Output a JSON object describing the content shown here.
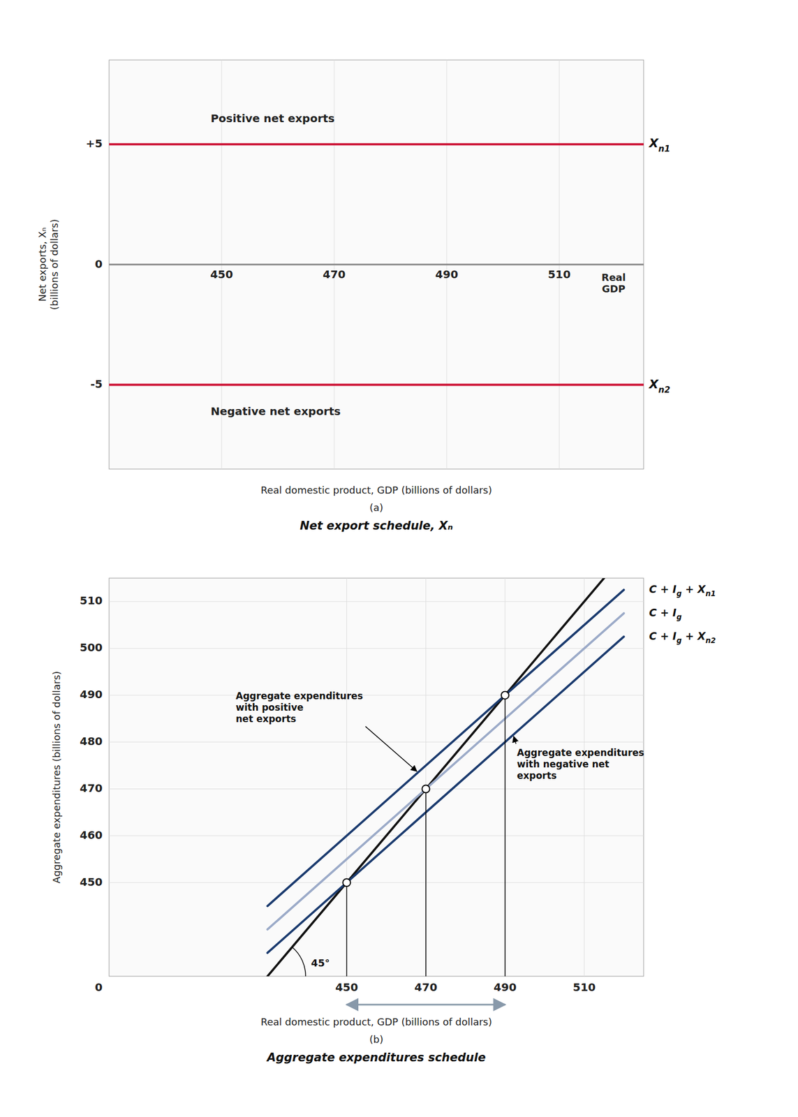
{
  "chart_data": [
    {
      "type": "line",
      "title": "Net export schedule, Xₙ",
      "subtitle": "(a)",
      "x_label": "Real domestic product, GDP (billions of dollars)",
      "y_label": "Net exports, Xₙ\n(billions of dollars)",
      "xlim": [
        430,
        525
      ],
      "ylim": [
        -8.5,
        8.5
      ],
      "xticks": [
        450,
        470,
        490,
        510
      ],
      "yticks": [
        -5,
        0,
        {
          "value": 5,
          "label": "+5"
        }
      ],
      "grid": "x",
      "axis_note": "Real\nGDP",
      "annotations": [
        "Positive net exports",
        "Negative net exports"
      ],
      "series": [
        {
          "name": "Xn1",
          "color": "#cc1133",
          "x": [
            430,
            525
          ],
          "values": [
            5,
            5
          ]
        },
        {
          "name": "Xn2",
          "color": "#cc1133",
          "x": [
            430,
            525
          ],
          "values": [
            -5,
            -5
          ]
        }
      ]
    },
    {
      "type": "line",
      "title": "Aggregate expenditures schedule",
      "subtitle": "(b)",
      "x_label": "Real domestic product, GDP (billions of dollars)",
      "y_label": "Aggregate expenditures (billions of dollars)",
      "xlim": [
        390,
        525
      ],
      "ylim": [
        430,
        515
      ],
      "xticks": [
        450,
        470,
        490,
        510
      ],
      "yticks": [
        450,
        460,
        470,
        480,
        490,
        500,
        510
      ],
      "grid": true,
      "origin_label": "0",
      "annotations": [
        "Aggregate expenditures\nwith positive\nnet exports",
        "Aggregate expenditures\nwith negative net\nexports"
      ],
      "range_arrow": {
        "from": 450,
        "to": 490,
        "color": "#8899aa"
      },
      "series": [
        {
          "name": "45°",
          "color": "#111111",
          "x": [
            430,
            515
          ],
          "values": [
            430,
            515
          ]
        },
        {
          "name": "C + Ig + Xn2",
          "color": "#1a3a6e",
          "x": [
            430,
            520
          ],
          "values": [
            435,
            502.5
          ]
        },
        {
          "name": "C + Ig",
          "color": "#9baac8",
          "x": [
            430,
            520
          ],
          "values": [
            440,
            507.5
          ]
        },
        {
          "name": "C + Ig + Xn1",
          "color": "#1a3a6e",
          "x": [
            430,
            520
          ],
          "values": [
            445,
            512.5
          ]
        },
        {
          "type": "scatter",
          "marker": "circle",
          "x": [
            450,
            470,
            490
          ],
          "values": [
            450,
            470,
            490
          ]
        }
      ]
    }
  ]
}
